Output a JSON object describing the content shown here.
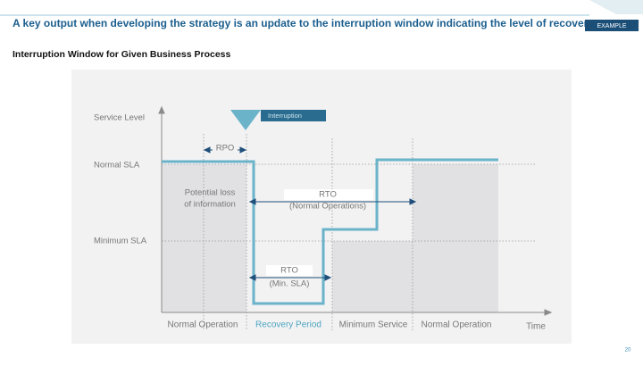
{
  "header": {
    "title": "A key output when developing the strategy is an update to the interruption window indicating the level of recovery",
    "tag": "EXAMPLE",
    "subtitle": "Interruption Window for Given Business Process"
  },
  "diagram": {
    "y_axis_label": "Service Level",
    "levels": [
      "Normal SLA",
      "Minimum SLA"
    ],
    "event": "Interruption",
    "rpo": "RPO",
    "loss_note": [
      "Potential loss",
      "of information"
    ],
    "rto_normal": [
      "RTO",
      "(Normal Operations)"
    ],
    "rto_min": [
      "RTO",
      "(Min. SLA)"
    ],
    "phases": [
      "Normal Operation",
      "Recovery Period",
      "Minimum Service",
      "Normal Operation"
    ],
    "x_axis_label": "Time"
  },
  "footer": {
    "page": "20"
  }
}
